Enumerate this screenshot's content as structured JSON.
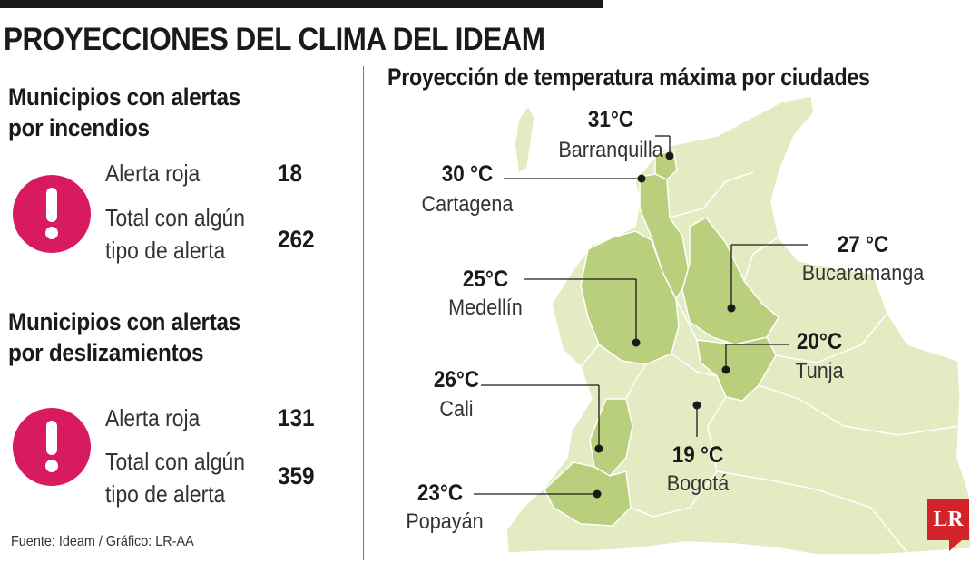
{
  "title": "PROYECCIONES DEL CLIMA DEL IDEAM",
  "fires": {
    "title_line1": "Municipios con alertas",
    "title_line2": "por incendios",
    "red_label": "Alerta roja",
    "red_value": "18",
    "total_label_line1": "Total con algún",
    "total_label_line2": "tipo de alerta",
    "total_value": "262"
  },
  "landslides": {
    "title_line1": "Municipios con alertas",
    "title_line2": "por deslizamientos",
    "red_label": "Alerta roja",
    "red_value": "131",
    "total_label_line1": "Total con algún",
    "total_label_line2": "tipo de alerta",
    "total_value": "359"
  },
  "source": "Fuente: Ideam / Gráfico: LR-AA",
  "map": {
    "title": "Proyección de temperatura máxima por ciudades",
    "cities": [
      {
        "name": "Barranquilla",
        "temp": "31°C"
      },
      {
        "name": "Cartagena",
        "temp": "30 °C"
      },
      {
        "name": "Bucaramanga",
        "temp": "27 °C"
      },
      {
        "name": "Medellín",
        "temp": "25°C"
      },
      {
        "name": "Tunja",
        "temp": "20°C"
      },
      {
        "name": "Cali",
        "temp": "26°C"
      },
      {
        "name": "Bogotá",
        "temp": "19 °C"
      },
      {
        "name": "Popayán",
        "temp": "23°C"
      }
    ],
    "colors": {
      "light": "#e4ebc2",
      "highlight": "#b9cf7c",
      "border": "#ffffff",
      "pin": "#1a1a1a"
    }
  },
  "icons": {
    "alert": "exclamation-icon",
    "logo": "lr-logo"
  },
  "logo_text": "LR",
  "accent_color": "#d81b60"
}
